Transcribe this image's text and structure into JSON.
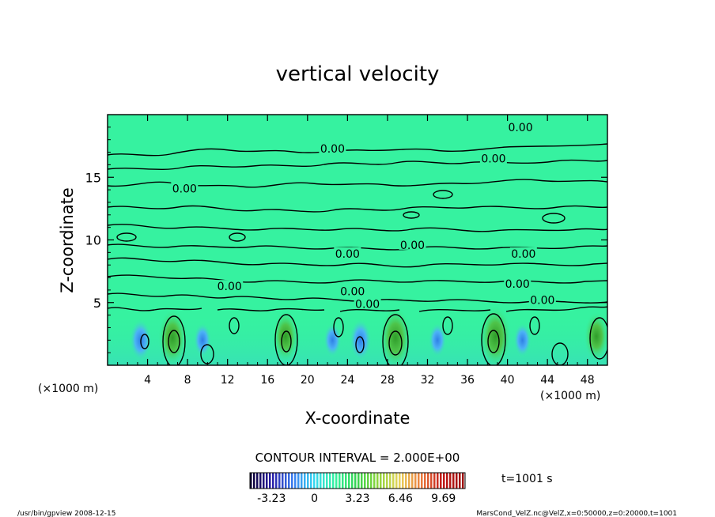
{
  "chart_data": {
    "type": "heatmap",
    "title": "vertical velocity",
    "xlabel": "X-coordinate",
    "ylabel": "Z-coordinate",
    "x_unit_left": "(×1000 m)",
    "x_unit_right": "(×1000 m)",
    "xlim": [
      0,
      50
    ],
    "ylim": [
      0,
      20
    ],
    "x_ticks": [
      4,
      8,
      12,
      16,
      20,
      24,
      28,
      32,
      36,
      40,
      44,
      48
    ],
    "y_ticks": [
      5,
      10,
      15
    ],
    "contour_interval_text": "CONTOUR INTERVAL = 2.000E+00",
    "time_text": "t=1001 s",
    "contour_labels": [
      {
        "x": 41.3,
        "y": 19.0,
        "text": "0.00"
      },
      {
        "x": 22.5,
        "y": 17.3,
        "text": "0.00"
      },
      {
        "x": 38.6,
        "y": 16.5,
        "text": "0.00"
      },
      {
        "x": 7.7,
        "y": 14.1,
        "text": "0.00"
      },
      {
        "x": 30.5,
        "y": 9.6,
        "text": "0.00"
      },
      {
        "x": 24.0,
        "y": 8.9,
        "text": "0.00"
      },
      {
        "x": 41.6,
        "y": 8.9,
        "text": "0.00"
      },
      {
        "x": 12.2,
        "y": 6.3,
        "text": "0.00"
      },
      {
        "x": 41.0,
        "y": 6.5,
        "text": "0.00"
      },
      {
        "x": 24.5,
        "y": 5.9,
        "text": "0.00"
      },
      {
        "x": 26.0,
        "y": 4.9,
        "text": "0.00"
      },
      {
        "x": 43.5,
        "y": 5.2,
        "text": "0.00"
      }
    ],
    "updrafts": [
      {
        "x": 6.5,
        "z": 2.2,
        "peak": 6.0
      },
      {
        "x": 17.8,
        "z": 2.3,
        "peak": 5.0
      },
      {
        "x": 28.8,
        "z": 2.2,
        "peak": 7.0
      },
      {
        "x": 38.8,
        "z": 2.3,
        "peak": 7.0
      },
      {
        "x": 48.9,
        "z": 2.3,
        "peak": 4.5
      }
    ],
    "downdrafts": [
      {
        "x": 3.3,
        "z": 2.0,
        "peak": -3.2
      },
      {
        "x": 9.5,
        "z": 2.0,
        "peak": -2.0
      },
      {
        "x": 22.5,
        "z": 2.0,
        "peak": -2.0
      },
      {
        "x": 25.3,
        "z": 2.0,
        "peak": -3.2
      },
      {
        "x": 33.0,
        "z": 2.0,
        "peak": -2.0
      },
      {
        "x": 41.5,
        "z": 2.0,
        "peak": -2.0
      }
    ],
    "colorbar": {
      "min": -4.85,
      "max": 11.31,
      "tick_labels": [
        "-3.23",
        "0",
        "3.23",
        "6.46",
        "9.69"
      ],
      "tick_values": [
        -3.23,
        0,
        3.23,
        6.46,
        9.69
      ],
      "colors": [
        "#0b0033",
        "#2a1ea8",
        "#3a7ef0",
        "#35d7f0",
        "#34f29e",
        "#35d24f",
        "#8ed53a",
        "#e7d35a",
        "#ec7f3f",
        "#c21a18",
        "#9e0f0c"
      ]
    },
    "colors": {
      "background": "#36f2a0",
      "updraft_core": "#48c445",
      "downdraft_core": "#4aa8f4",
      "contour": "#000000"
    }
  },
  "footer": {
    "left": "/usr/bin/gpview   2008-12-15",
    "right": "MarsCond_VelZ.nc@VelZ,x=0:50000,z=0:20000,t=1001"
  }
}
